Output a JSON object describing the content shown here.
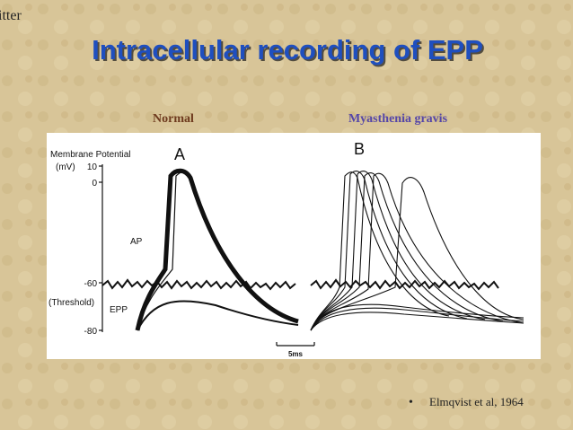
{
  "header": {
    "corner_text": "itter",
    "title": "Intracellular recording of EPP"
  },
  "panels": {
    "left_label": "Normal",
    "right_label": "Myasthenia gravis"
  },
  "figure": {
    "y_axis_label_1": "Membrane  Potential",
    "y_axis_label_2": "(mV)",
    "tick_labels": [
      "10",
      "0",
      "-60",
      "-80"
    ],
    "threshold_label": "(Threshold)",
    "ap_label": "AP",
    "epp_label": "EPP",
    "panel_a": "A",
    "panel_b": "B",
    "scale_bar": "5ms"
  },
  "footer": {
    "bullet": "•",
    "citation": "Elmqvist et al, 1964"
  }
}
